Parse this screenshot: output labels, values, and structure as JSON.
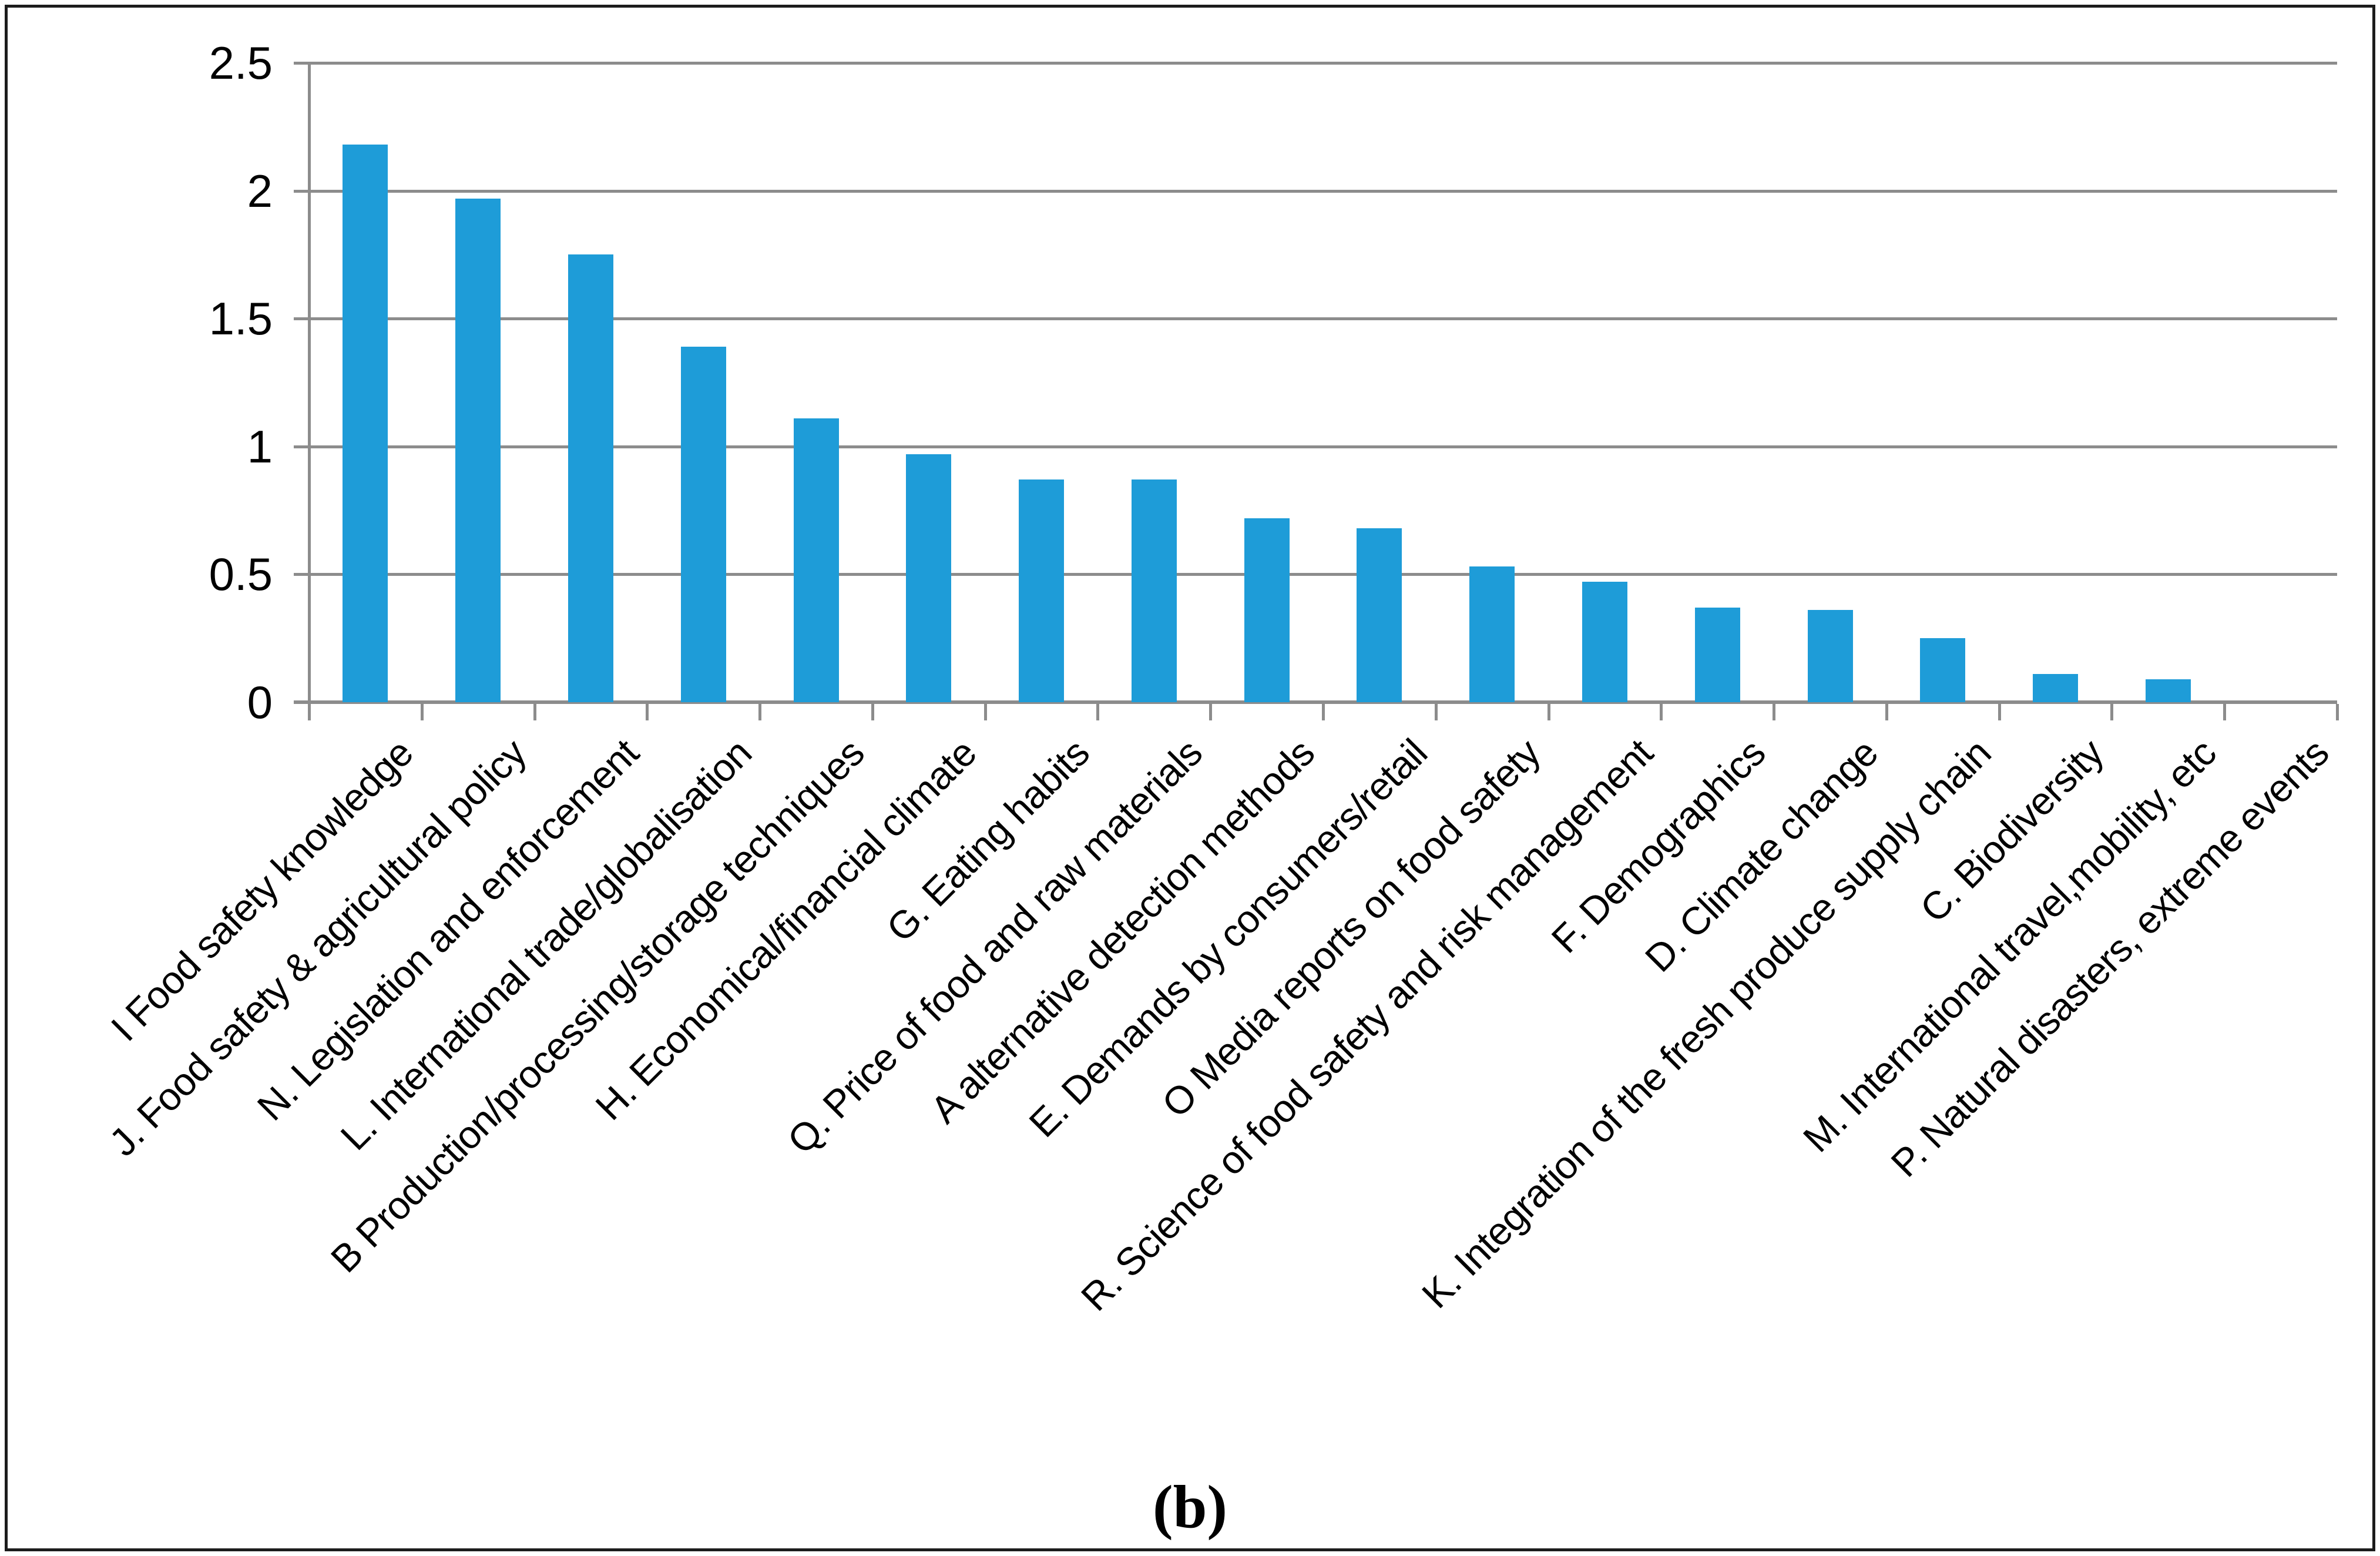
{
  "figure": {
    "caption": "(b)"
  },
  "chart_data": {
    "type": "bar",
    "title": "",
    "xlabel": "",
    "ylabel": "",
    "categories": [
      "I Food safety knowledge",
      "J. Food safety & agricultural policy",
      "N. Legislation and enforcement",
      "L. International trade/globalisation",
      "B Production/processing/storage techniques",
      "H. Economical/financial climate",
      "G. Eating habits",
      "Q. Price of food and raw materials",
      "A alternative detection methods",
      "E. Demands by consumers/retail",
      "O Media reports on food safety",
      "R. Science of food safety and risk management",
      "F. Demographics",
      "D. Climate change",
      "K. Integration of the fresh produce supply chain",
      "C. Biodiversity",
      "M. International travel,mobility, etc",
      "P. Natural disasters, extreme events"
    ],
    "values": [
      2.18,
      1.97,
      1.75,
      1.39,
      1.11,
      0.97,
      0.87,
      0.87,
      0.72,
      0.68,
      0.53,
      0.47,
      0.37,
      0.36,
      0.25,
      0.11,
      0.09,
      0
    ],
    "ylim": [
      0,
      2.5
    ],
    "yticks": [
      {
        "value": 2.5,
        "label": "2.5"
      },
      {
        "value": 2,
        "label": "2"
      },
      {
        "value": 1.5,
        "label": "1.5"
      },
      {
        "value": 1,
        "label": "1"
      },
      {
        "value": 0.5,
        "label": "0.5"
      },
      {
        "value": 0,
        "label": "0"
      }
    ],
    "grid": true,
    "legend": "none",
    "x_label_rotation_deg": 45,
    "bar_color": "#1e9cd8",
    "grid_color": "#8c8c8c",
    "axis_color": "#8c8c8c",
    "text_color": "#000000"
  }
}
